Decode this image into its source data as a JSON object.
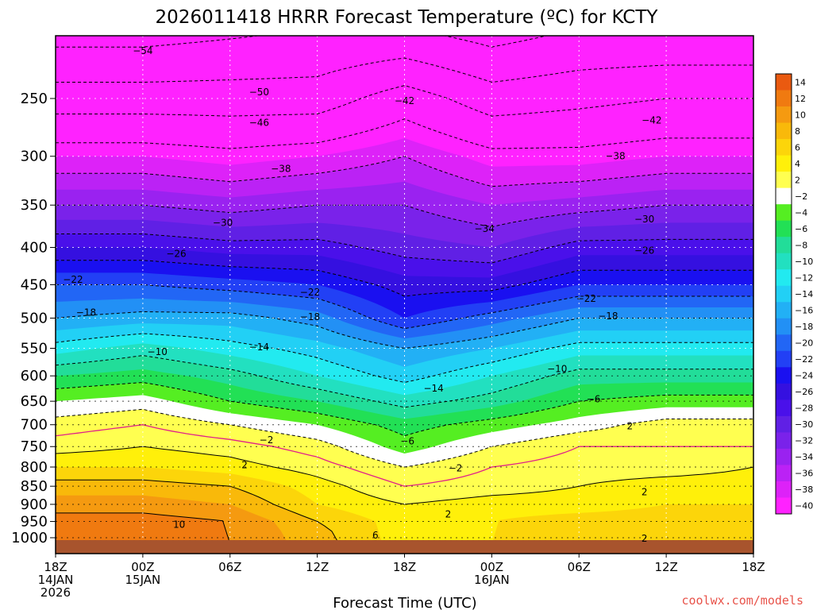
{
  "chart_data": {
    "type": "heatmap",
    "title": "2026011418 HRRR Forecast Temperature (ºC) for KCTY",
    "xlabel": "Forecast Time (UTC)",
    "ylabel": "",
    "credit": "coolwx.com/models",
    "x_ticks": [
      {
        "hour": 0,
        "lines": [
          "18Z",
          "14JAN",
          "2026"
        ]
      },
      {
        "hour": 6,
        "lines": [
          "00Z",
          "15JAN"
        ]
      },
      {
        "hour": 12,
        "lines": [
          "06Z"
        ]
      },
      {
        "hour": 18,
        "lines": [
          "12Z"
        ]
      },
      {
        "hour": 24,
        "lines": [
          "18Z"
        ]
      },
      {
        "hour": 30,
        "lines": [
          "00Z",
          "16JAN"
        ]
      },
      {
        "hour": 36,
        "lines": [
          "06Z"
        ]
      },
      {
        "hour": 42,
        "lines": [
          "12Z"
        ]
      },
      {
        "hour": 48,
        "lines": [
          "18Z"
        ]
      }
    ],
    "xlim": [
      0,
      48
    ],
    "y_ticks": [
      "250",
      "300",
      "350",
      "400",
      "450",
      "500",
      "550",
      "600",
      "650",
      "700",
      "750",
      "800",
      "850",
      "900",
      "950",
      "1000"
    ],
    "y_pressure": [
      250,
      300,
      350,
      400,
      450,
      500,
      550,
      600,
      650,
      700,
      750,
      800,
      850,
      900,
      950,
      1000
    ],
    "ylim": [
      200,
      1020
    ],
    "colorbar": {
      "labels": [
        "14",
        "12",
        "10",
        "8",
        "6",
        "4",
        "2",
        "−2",
        "−4",
        "−6",
        "−8",
        "−10",
        "−12",
        "−14",
        "−16",
        "−18",
        "−20",
        "−22",
        "−24",
        "−26",
        "−28",
        "−30",
        "−32",
        "−34",
        "−36",
        "−38",
        "−40"
      ],
      "colors": [
        "#ea5a10",
        "#f07a10",
        "#f59a10",
        "#f9b90a",
        "#fcd50a",
        "#fff00a",
        "#ffff50",
        "#ffffff",
        "#55ee22",
        "#22e055",
        "#22dd99",
        "#22e0c0",
        "#22eaf0",
        "#22d0f5",
        "#22b0f5",
        "#2290f5",
        "#2266f5",
        "#2240f5",
        "#1a10f0",
        "#3510e0",
        "#4a10ea",
        "#6020e5",
        "#7a22ea",
        "#9a22f0",
        "#bb22f5",
        "#dd22f8",
        "#ff22ff"
      ]
    },
    "temperature_profiles": {
      "hours": [
        0,
        6,
        12,
        18,
        24,
        30,
        36,
        42,
        48
      ],
      "pressure": [
        200,
        250,
        300,
        350,
        400,
        450,
        500,
        550,
        600,
        650,
        700,
        750,
        800,
        850,
        900,
        950,
        1000
      ],
      "temps": [
        [
          -56,
          -48,
          -40,
          -34,
          -28,
          -22,
          -18,
          -13,
          -8,
          -4,
          -1,
          1,
          4,
          7,
          9,
          11,
          12
        ],
        [
          -56,
          -48,
          -40,
          -34,
          -28,
          -22,
          -17,
          -11,
          -7,
          -3,
          0,
          2,
          4,
          7,
          9,
          11,
          12
        ],
        [
          -55,
          -48,
          -41,
          -35,
          -29,
          -23,
          -17,
          -13,
          -9,
          -6,
          -2,
          1,
          3,
          6,
          8,
          10,
          10
        ],
        [
          -54,
          -48,
          -40,
          -34,
          -29,
          -24,
          -19,
          -15,
          -12,
          -8,
          -4,
          -1,
          1,
          3,
          4,
          6,
          7
        ],
        [
          -54,
          -44,
          -38,
          -34,
          -31,
          -27,
          -24,
          -18,
          -15,
          -11,
          -7,
          -5,
          -2,
          0,
          2,
          3,
          3
        ],
        [
          -56,
          -48,
          -41,
          -36,
          -32,
          -27,
          -21,
          -16,
          -12,
          -9,
          -5,
          -2,
          0,
          1,
          3,
          4,
          4
        ],
        [
          -54,
          -47,
          -41,
          -35,
          -29,
          -24,
          -18,
          -13,
          -9,
          -6,
          -3,
          0,
          1,
          2,
          3,
          5,
          5
        ],
        [
          -54,
          -46,
          -40,
          -34,
          -29,
          -24,
          -18,
          -13,
          -9,
          -5,
          -1,
          0,
          1,
          3,
          4,
          5,
          5
        ],
        [
          -54,
          -46,
          -40,
          -34,
          -29,
          -24,
          -18,
          -13,
          -9,
          -5,
          -1,
          0,
          2,
          3,
          4,
          5,
          5
        ]
      ]
    },
    "contour_labels": [
      {
        "text": "−54",
        "hour": 6.0,
        "p": 215
      },
      {
        "text": "−50",
        "hour": 14.0,
        "p": 245
      },
      {
        "text": "−46",
        "hour": 14.0,
        "p": 270
      },
      {
        "text": "−42",
        "hour": 24.0,
        "p": 252
      },
      {
        "text": "−42",
        "hour": 41.0,
        "p": 268
      },
      {
        "text": "−38",
        "hour": 15.5,
        "p": 312
      },
      {
        "text": "−38",
        "hour": 38.5,
        "p": 300
      },
      {
        "text": "−34",
        "hour": 29.5,
        "p": 377
      },
      {
        "text": "−30",
        "hour": 11.5,
        "p": 370
      },
      {
        "text": "−30",
        "hour": 40.5,
        "p": 366
      },
      {
        "text": "−26",
        "hour": 8.3,
        "p": 408
      },
      {
        "text": "−26",
        "hour": 40.5,
        "p": 404
      },
      {
        "text": "−22",
        "hour": 1.2,
        "p": 443
      },
      {
        "text": "−22",
        "hour": 17.5,
        "p": 461
      },
      {
        "text": "−22",
        "hour": 36.5,
        "p": 470
      },
      {
        "text": "−18",
        "hour": 2.1,
        "p": 491
      },
      {
        "text": "−18",
        "hour": 17.5,
        "p": 498
      },
      {
        "text": "−18",
        "hour": 38.0,
        "p": 497
      },
      {
        "text": "−14",
        "hour": 14.0,
        "p": 548
      },
      {
        "text": "−14",
        "hour": 26.0,
        "p": 624
      },
      {
        "text": "−10",
        "hour": 7.0,
        "p": 556
      },
      {
        "text": "−10",
        "hour": 34.5,
        "p": 587
      },
      {
        "text": "−6",
        "hour": 37.0,
        "p": 646
      },
      {
        "text": "−6",
        "hour": 24.2,
        "p": 737
      },
      {
        "text": "−2",
        "hour": 14.5,
        "p": 735
      },
      {
        "text": "−2",
        "hour": 27.5,
        "p": 803
      },
      {
        "text": "2",
        "hour": 39.5,
        "p": 703
      },
      {
        "text": "2",
        "hour": 13.0,
        "p": 795
      },
      {
        "text": "2",
        "hour": 40.5,
        "p": 866
      },
      {
        "text": "2",
        "hour": 27.0,
        "p": 929
      },
      {
        "text": "2",
        "hour": 40.5,
        "p": 1002
      },
      {
        "text": "6",
        "hour": 22.0,
        "p": 993
      },
      {
        "text": "10",
        "hour": 8.5,
        "p": 960
      }
    ]
  }
}
